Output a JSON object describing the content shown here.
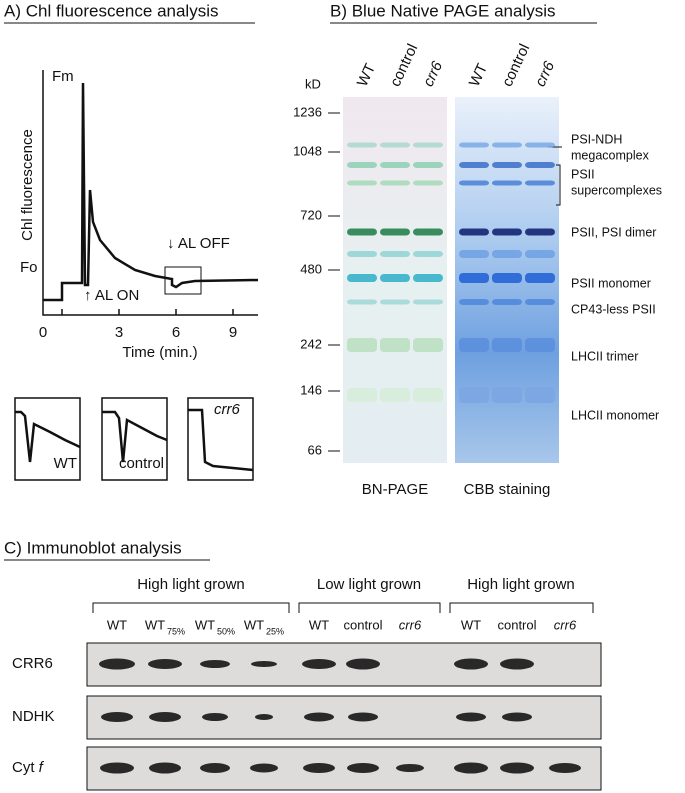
{
  "panel_a": {
    "title": "A) Chl fluorescence analysis",
    "y_label": "Chl fluorescence",
    "x_label": "Time (min.)",
    "x_ticks": [
      "0",
      "3",
      "6",
      "9"
    ],
    "fm": "Fm",
    "fo": "Fo",
    "al_on": "↑ AL ON",
    "al_off": "↓ AL OFF",
    "insets": [
      "WT",
      "control",
      "crr6"
    ]
  },
  "panel_b": {
    "title": "B) Blue Native PAGE analysis",
    "unit": "kD",
    "markers": [
      "1236",
      "1048",
      "720",
      "480",
      "242",
      "146",
      "66"
    ],
    "lanes": [
      "WT",
      "control",
      "crr6"
    ],
    "gels": [
      "BN-PAGE",
      "CBB staining"
    ],
    "bands": [
      [
        "PSI-NDH",
        "megacomplex"
      ],
      [
        "PSII",
        "supercomplexes"
      ],
      [
        "PSII, PSI dimer"
      ],
      [
        "PSII monomer"
      ],
      [
        "CP43-less PSII"
      ],
      [
        "LHCII trimer"
      ],
      [
        "LHCII monomer"
      ]
    ]
  },
  "panel_c": {
    "title": "C) Immunoblot analysis",
    "groups": [
      "High light grown",
      "Low light grown",
      "High light grown"
    ],
    "lanes": [
      {
        "name": "WT"
      },
      {
        "name": "WT",
        "sub": "75%"
      },
      {
        "name": "WT",
        "sub": "50%"
      },
      {
        "name": "WT",
        "sub": "25%"
      },
      {
        "name": "WT"
      },
      {
        "name": "control"
      },
      {
        "name": "crr6"
      },
      {
        "name": "WT"
      },
      {
        "name": "control"
      },
      {
        "name": "crr6"
      }
    ],
    "rows": [
      {
        "text": "CRR6"
      },
      {
        "text": "NDHK"
      },
      {
        "text": "Cyt",
        "italic": "f"
      }
    ]
  }
}
